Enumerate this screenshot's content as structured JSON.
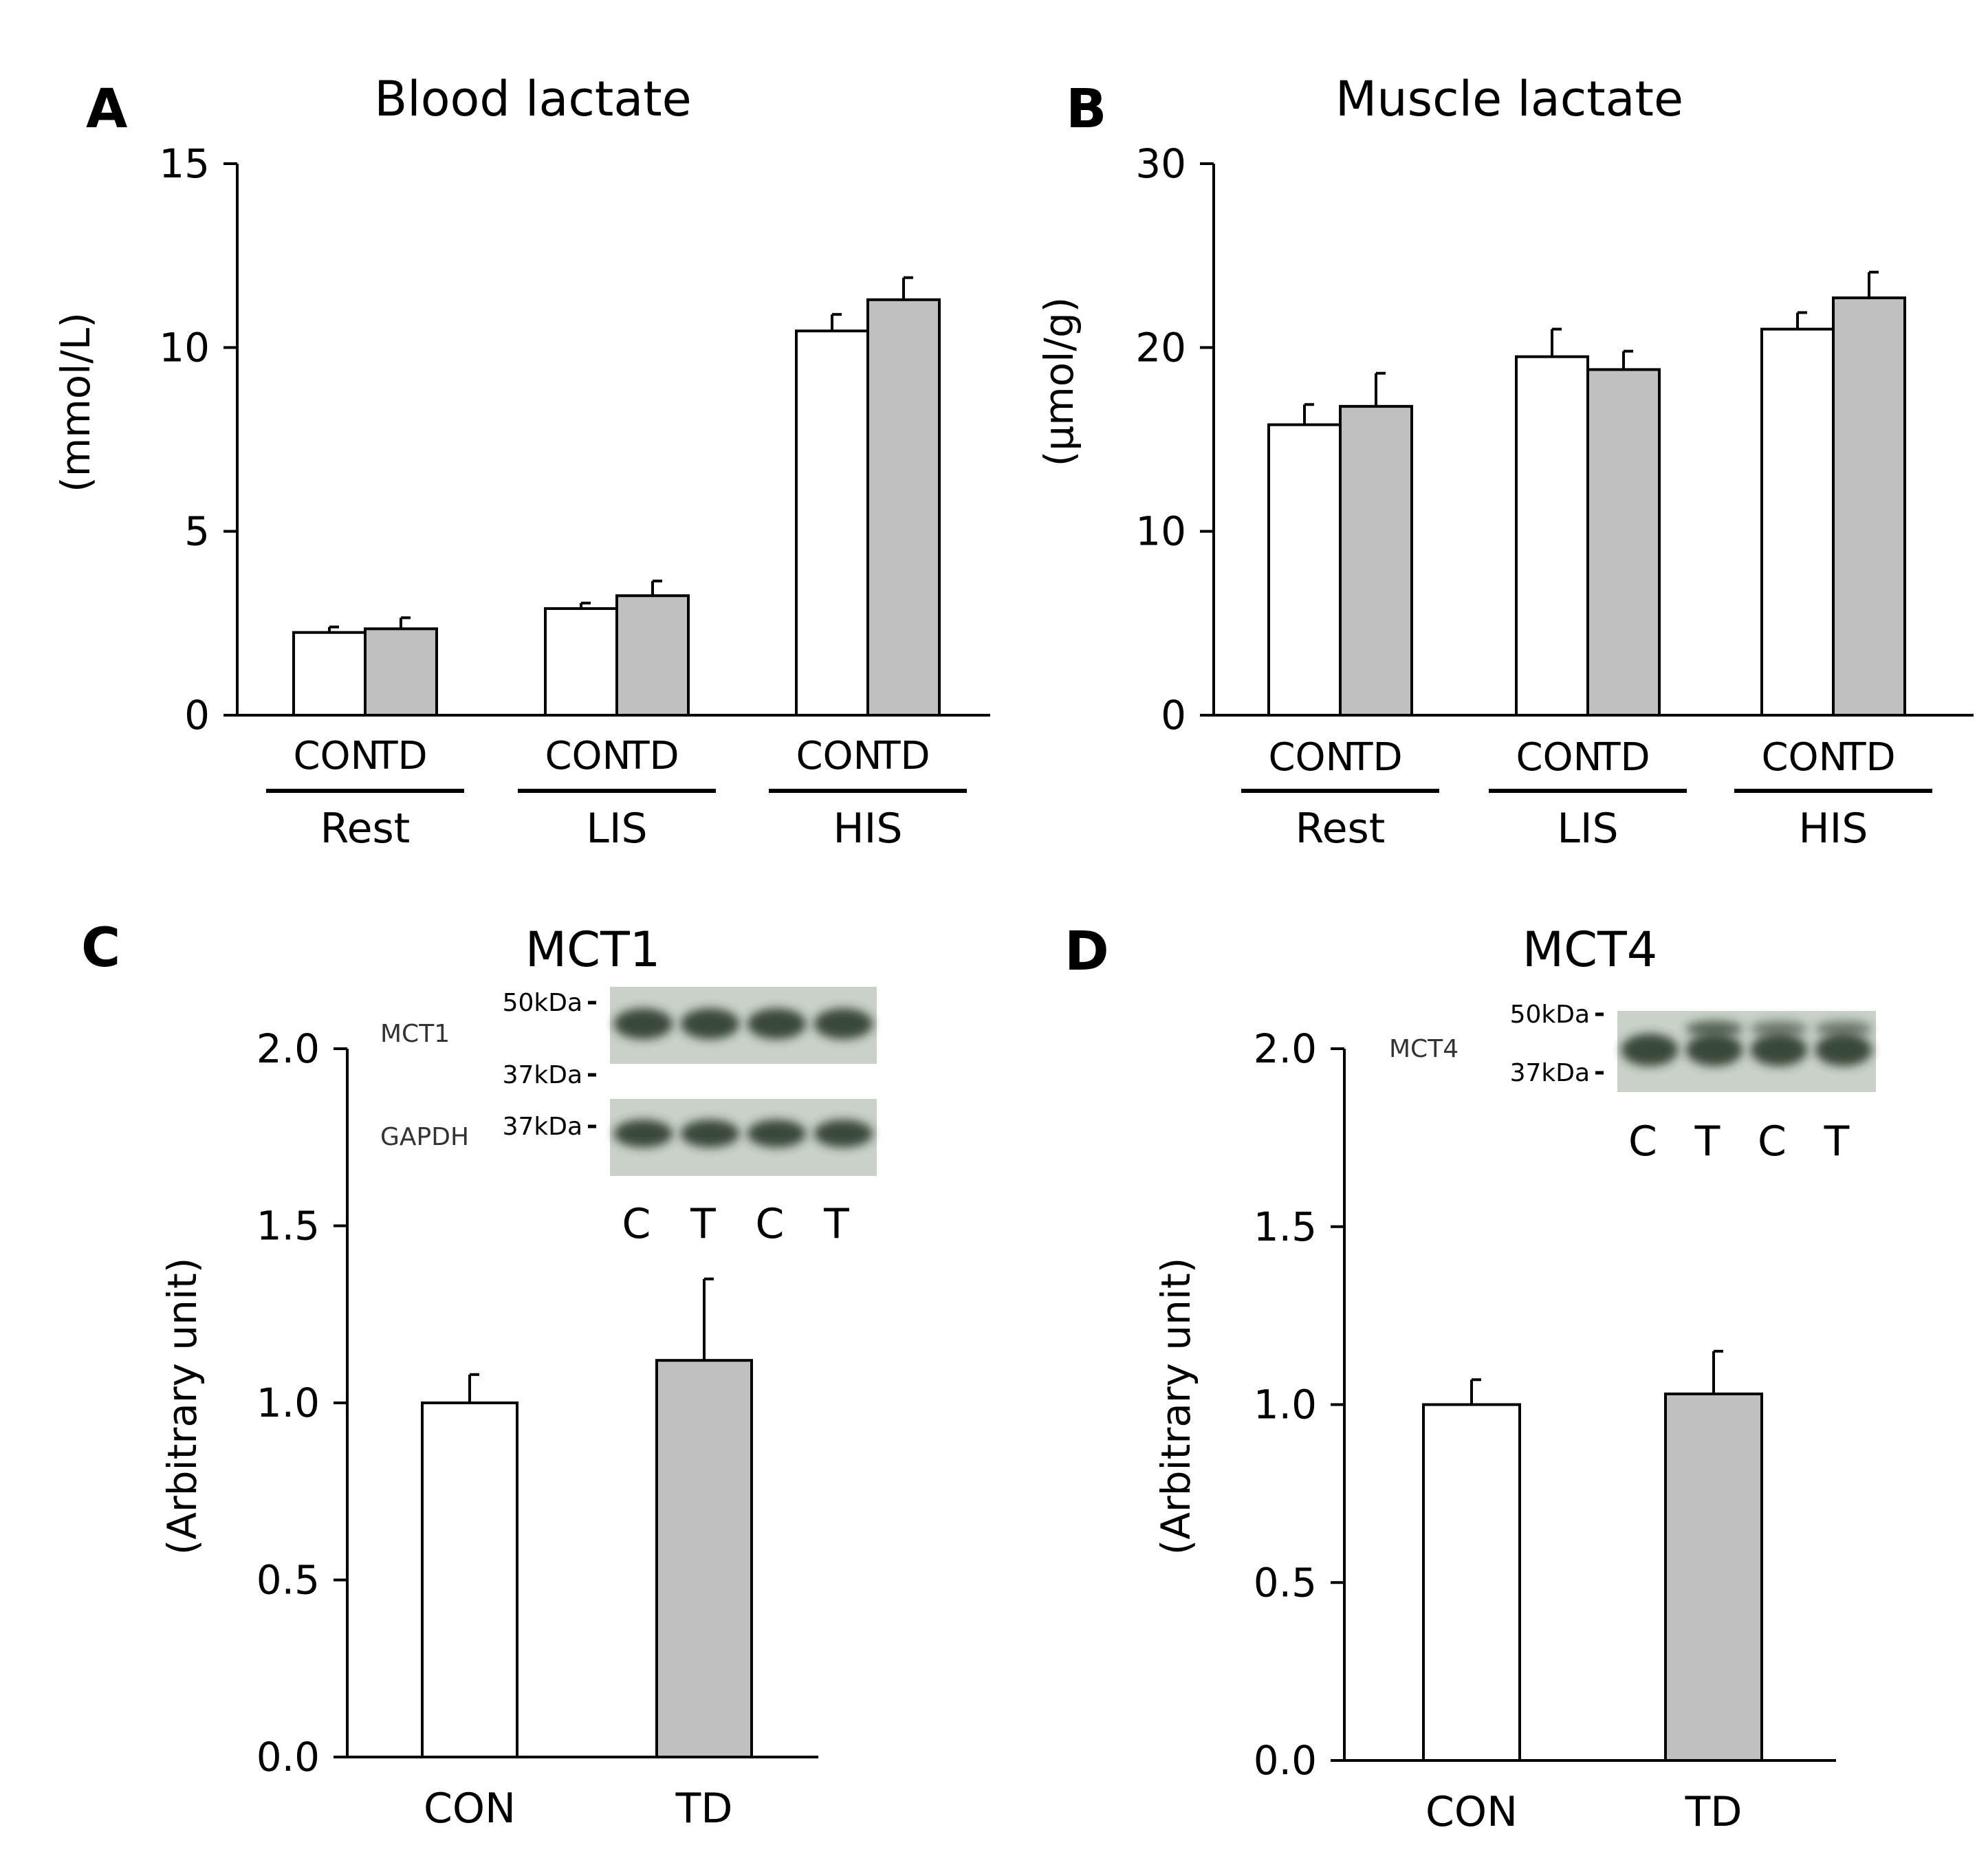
{
  "colors": {
    "con": "#ffffff",
    "td": "#c0c0c0",
    "axis": "#000000",
    "blot_bg": "#c9d1c9",
    "band": "#2a3a2c"
  },
  "chart_data": [
    {
      "id": "A",
      "letter": "A",
      "type": "bar",
      "title": "Blood lactate",
      "ylabel": "(mmol/L)",
      "ylim": [
        0,
        15
      ],
      "yticks": [
        0,
        5,
        10,
        15
      ],
      "tick_decimals": 0,
      "series_labels": [
        "CON",
        "TD"
      ],
      "groups": [
        "Rest",
        "LIS",
        "HIS"
      ],
      "values": [
        [
          2.25,
          2.35
        ],
        [
          2.9,
          3.25
        ],
        [
          10.45,
          11.3
        ]
      ],
      "errors": [
        [
          0.15,
          0.3
        ],
        [
          0.15,
          0.4
        ],
        [
          0.45,
          0.6
        ]
      ]
    },
    {
      "id": "B",
      "letter": "B",
      "type": "bar",
      "title": "Muscle lactate",
      "ylabel": "(μmol/g)",
      "ylim": [
        0,
        30
      ],
      "yticks": [
        0,
        10,
        20,
        30
      ],
      "tick_decimals": 0,
      "series_labels": [
        "CON",
        "TD"
      ],
      "groups": [
        "Rest",
        "LIS",
        "HIS"
      ],
      "values": [
        [
          15.8,
          16.8
        ],
        [
          19.5,
          18.8
        ],
        [
          21.0,
          22.7
        ]
      ],
      "errors": [
        [
          1.1,
          1.8
        ],
        [
          1.5,
          1.0
        ],
        [
          0.9,
          1.4
        ]
      ]
    },
    {
      "id": "C",
      "letter": "C",
      "type": "bar",
      "title": "MCT1",
      "ylabel": "(Arbitrary unit)",
      "ylim": [
        0,
        2.0
      ],
      "yticks": [
        0.0,
        0.5,
        1.0,
        1.5,
        2.0
      ],
      "tick_decimals": 1,
      "categories": [
        "CON",
        "TD"
      ],
      "values": [
        1.0,
        1.12
      ],
      "errors": [
        0.08,
        0.23
      ],
      "blot": {
        "target_label": "MCT1",
        "loading_label": "GAPDH",
        "markers_target": [
          "50kDa",
          "37kDa"
        ],
        "marker_loading": "37kDa",
        "lanes": [
          "C",
          "T",
          "C",
          "T"
        ]
      }
    },
    {
      "id": "D",
      "letter": "D",
      "type": "bar",
      "title": "MCT4",
      "ylabel": "(Arbitrary unit)",
      "ylim": [
        0,
        2.0
      ],
      "yticks": [
        0.0,
        0.5,
        1.0,
        1.5,
        2.0
      ],
      "tick_decimals": 1,
      "categories": [
        "CON",
        "TD"
      ],
      "values": [
        1.0,
        1.03
      ],
      "errors": [
        0.07,
        0.12
      ],
      "blot": {
        "target_label": "MCT4",
        "markers_target": [
          "50kDa",
          "37kDa"
        ],
        "lanes": [
          "C",
          "T",
          "C",
          "T"
        ]
      }
    }
  ]
}
